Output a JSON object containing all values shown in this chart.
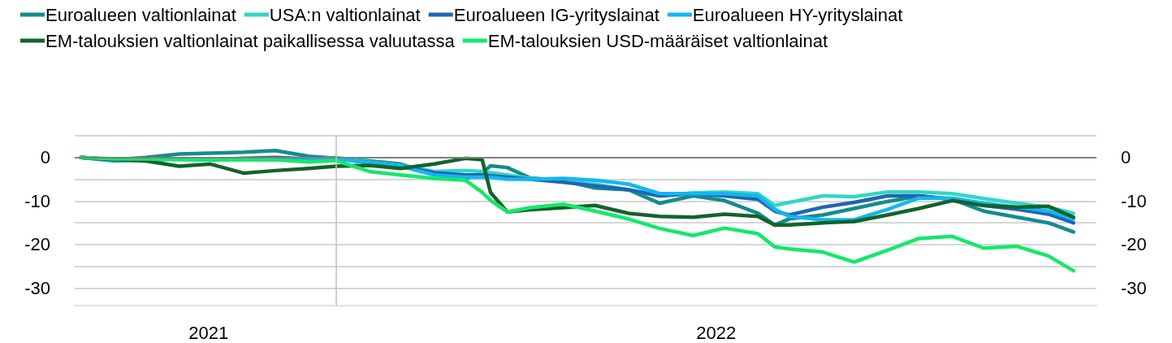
{
  "chart_data": {
    "type": "line",
    "x": [
      "2021-09-01",
      "2021-09-17",
      "2021-10-02",
      "2021-10-18",
      "2021-11-02",
      "2021-11-18",
      "2021-12-03",
      "2021-12-19",
      "2022-01-01",
      "2022-01-17",
      "2022-02-01",
      "2022-02-17",
      "2022-03-04",
      "2022-03-12",
      "2022-03-16",
      "2022-03-24",
      "2022-04-04",
      "2022-04-20",
      "2022-05-05",
      "2022-05-21",
      "2022-06-05",
      "2022-06-21",
      "2022-07-06",
      "2022-07-22",
      "2022-07-30",
      "2022-08-06",
      "2022-08-22",
      "2022-09-06",
      "2022-09-22",
      "2022-10-07",
      "2022-10-23",
      "2022-11-07",
      "2022-11-23",
      "2022-12-08",
      "2022-12-20"
    ],
    "series": [
      {
        "name": "Euroalueen valtionlainat",
        "color": "#138c8c",
        "values": [
          0,
          -0.5,
          0,
          0.8,
          1,
          1.2,
          1.6,
          0.3,
          -0.2,
          -0.8,
          -1.5,
          -3.8,
          -4.8,
          -3.6,
          -1.9,
          -2.3,
          -4.7,
          -5.3,
          -7,
          -7.4,
          -10.5,
          -8.8,
          -9.9,
          -12.8,
          -15.5,
          -14.1,
          -13.2,
          -11.7,
          -10.1,
          -8.8,
          -9.6,
          -12.3,
          -13.7,
          -15,
          -17.1
        ]
      },
      {
        "name": "USA:n valtionlainat",
        "color": "#33d6c6",
        "values": [
          0,
          -0.5,
          -0.5,
          -0.3,
          -0.5,
          -0.5,
          -0.5,
          -0.5,
          0,
          -1,
          -1.8,
          -3.2,
          -3,
          -3.2,
          -3.5,
          -4,
          -4.8,
          -5.5,
          -6.1,
          -7.4,
          -8.8,
          -8.1,
          -7.9,
          -8.3,
          -11,
          -10.3,
          -8.8,
          -9,
          -7.9,
          -7.9,
          -8.3,
          -9.4,
          -10.5,
          -11.4,
          -12.8
        ]
      },
      {
        "name": "Euroalueen IG-yrityslainat",
        "color": "#1f66b0",
        "values": [
          0,
          -0.5,
          -0.5,
          -0.3,
          -0.5,
          -0.2,
          0,
          -0.3,
          -0.2,
          -1.2,
          -2,
          -3.5,
          -4,
          -4,
          -4.2,
          -4.5,
          -5,
          -5.7,
          -6.5,
          -7.4,
          -8.8,
          -8.3,
          -8.8,
          -9.6,
          -12.3,
          -13.2,
          -11.4,
          -10.3,
          -8.8,
          -8.8,
          -9.6,
          -11,
          -11.9,
          -13,
          -15
        ]
      },
      {
        "name": "Euroalueen HY-yrityslainat",
        "color": "#14b6f0",
        "values": [
          0,
          -0.8,
          -0.5,
          -0.3,
          -0.5,
          -0.3,
          -0.3,
          -0.5,
          -0.3,
          -1.2,
          -2,
          -4,
          -4.5,
          -4.5,
          -4.5,
          -5,
          -5,
          -4.8,
          -5.2,
          -6.1,
          -8.3,
          -8.3,
          -8.3,
          -8.8,
          -11.9,
          -13.5,
          -14.3,
          -14.3,
          -11.9,
          -9.3,
          -9.3,
          -10.5,
          -11.4,
          -12.3,
          -14.1
        ]
      },
      {
        "name": "EM-talouksien valtionlainat paikallisessa valuutassa",
        "color": "#12632b",
        "values": [
          0,
          -0.5,
          -0.8,
          -2,
          -1.5,
          -3.6,
          -3,
          -2.5,
          -2,
          -1.8,
          -2.5,
          -1.5,
          -0.2,
          -0.5,
          -8,
          -12.5,
          -12,
          -11.5,
          -11,
          -12.8,
          -13.5,
          -13.7,
          -13,
          -13.5,
          -15.5,
          -15.5,
          -15,
          -14.7,
          -13.2,
          -11.7,
          -9.9,
          -11,
          -11.4,
          -11.2,
          -13.7
        ]
      },
      {
        "name": "EM-talouksien USD-määräiset valtionlainat",
        "color": "#15e86a",
        "values": [
          0,
          -0.3,
          -0.3,
          -0.5,
          -0.5,
          -0.5,
          -0.5,
          -1,
          -0.7,
          -3.2,
          -4,
          -4.8,
          -5.2,
          -8,
          -9.8,
          -12.5,
          -11.5,
          -10.7,
          -12.3,
          -14.1,
          -16.3,
          -17.9,
          -16.2,
          -17.5,
          -20.5,
          -21,
          -21.7,
          -24,
          -21.3,
          -18.6,
          -18.1,
          -20.8,
          -20.4,
          -22.6,
          -26
        ]
      }
    ],
    "xlim": [
      "2021-08-29",
      "2022-12-31"
    ],
    "xticks": [
      {
        "value": "2021-11-01",
        "label": "2021"
      },
      {
        "value": "2022-07-02",
        "label": "2022"
      }
    ],
    "ylim": [
      -34,
      5
    ],
    "yticks": [
      {
        "value": -30,
        "label": "-30"
      },
      {
        "value": -25,
        "label": null
      },
      {
        "value": -20,
        "label": "-20"
      },
      {
        "value": -15,
        "label": null
      },
      {
        "value": -10,
        "label": "-10"
      },
      {
        "value": -5,
        "label": null
      },
      {
        "value": 0,
        "label": "0"
      },
      {
        "value": 5,
        "label": null
      }
    ],
    "y2lim": [
      -34,
      5
    ],
    "y2ticks": [
      {
        "value": -30,
        "label": "-30"
      },
      {
        "value": -25,
        "label": null
      },
      {
        "value": -20,
        "label": "-20"
      },
      {
        "value": -15,
        "label": null
      },
      {
        "value": -10,
        "label": "-10"
      },
      {
        "value": -5,
        "label": null
      },
      {
        "value": 0,
        "label": "0"
      },
      {
        "value": 5,
        "label": null
      }
    ],
    "ref_lines": [
      {
        "axis": "y",
        "value": 0,
        "label": null,
        "color": "#7f7f7f"
      },
      {
        "axis": "x",
        "value": "2022-01-01",
        "label": null,
        "color": "#bfbfbf"
      }
    ],
    "grid": "y",
    "legend": "top",
    "marker": "none",
    "line_style": "solid"
  }
}
